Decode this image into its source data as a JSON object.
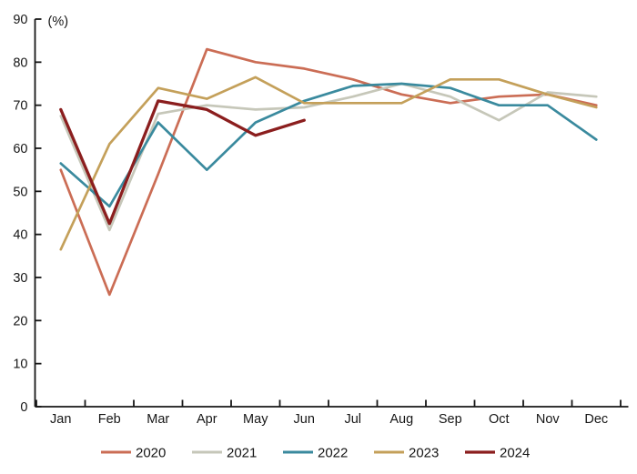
{
  "figure": {
    "unit_label": "(%)"
  },
  "chart_data": {
    "type": "line",
    "title": "",
    "xlabel": "",
    "ylabel": "(%)",
    "ylim": [
      0,
      90
    ],
    "yticks": [
      0,
      10,
      20,
      30,
      40,
      50,
      60,
      70,
      80,
      90
    ],
    "grid": false,
    "legend_position": "bottom",
    "categories": [
      "Jan",
      "Feb",
      "Mar",
      "Apr",
      "May",
      "Jun",
      "Jul",
      "Aug",
      "Sep",
      "Oct",
      "Nov",
      "Dec"
    ],
    "series": [
      {
        "name": "2020",
        "color": "#cb6d55",
        "line_width": 2.7,
        "values": [
          55,
          26,
          54,
          83,
          80,
          78.5,
          76,
          72.5,
          70.5,
          72,
          72.5,
          70
        ]
      },
      {
        "name": "2021",
        "color": "#c6c7b9",
        "line_width": 2.7,
        "values": [
          67.5,
          41,
          68,
          70,
          69,
          69.5,
          72,
          75,
          72,
          66.5,
          73,
          72
        ]
      },
      {
        "name": "2022",
        "color": "#3a8a9e",
        "line_width": 2.7,
        "values": [
          56.5,
          46.5,
          66,
          55,
          66,
          71,
          74.5,
          75,
          74,
          70,
          70,
          62
        ]
      },
      {
        "name": "2023",
        "color": "#c4a05a",
        "line_width": 2.7,
        "values": [
          36.5,
          61,
          74,
          71.5,
          76.5,
          70.5,
          70.5,
          70.5,
          76,
          76,
          72.5,
          69.5
        ]
      },
      {
        "name": "2024",
        "color": "#8b1e1e",
        "line_width": 3.3,
        "values": [
          69,
          42.5,
          71,
          69,
          63,
          66.5
        ]
      }
    ],
    "axis_color": "#161616",
    "background_color": "#ffffff"
  }
}
